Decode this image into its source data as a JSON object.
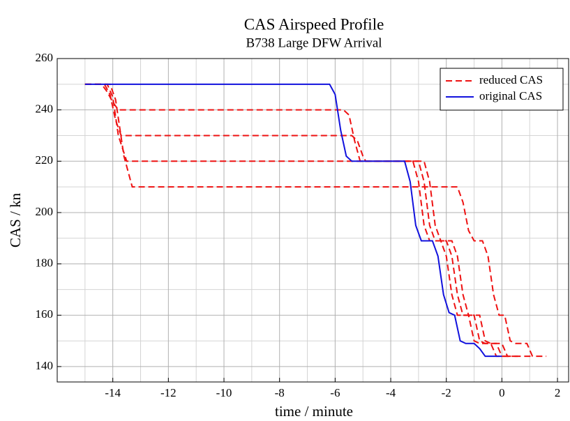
{
  "chart_data": {
    "type": "line",
    "title": "CAS Airspeed Profile",
    "subtitle": "B738 Large DFW Arrival",
    "x_label": "time / minute",
    "y_label": "CAS / kn",
    "xlim": [
      -16,
      2.4
    ],
    "ylim": [
      134,
      260
    ],
    "xticks": [
      -14,
      -12,
      -10,
      -8,
      -6,
      -4,
      -2,
      0,
      2
    ],
    "xminorticks": [
      -15,
      -13,
      -11,
      -9,
      -7,
      -5,
      -3,
      -1,
      1
    ],
    "yticks": [
      140,
      160,
      180,
      200,
      220,
      240,
      260
    ],
    "yminorticks": [
      150,
      170,
      190,
      210,
      230,
      250
    ],
    "grid": true,
    "legend": "upper right",
    "series": [
      {
        "name": "reduced CAS",
        "color": "#ee1111",
        "dash": true,
        "x": [
          -15,
          -14.4,
          -14.2,
          -14.0,
          -13.8,
          -5.7,
          -5.5,
          -5.3,
          -5.1,
          -3.2,
          -3.0,
          -2.8,
          -2.6,
          -2.2,
          -2.0,
          -1.8,
          -1.6,
          -1.2,
          -1.0,
          -0.8,
          -0.4,
          -0.2,
          0.3
        ],
        "values": [
          250,
          250,
          247,
          243,
          240,
          240,
          238,
          228,
          220,
          220,
          212,
          195,
          189,
          189,
          183,
          168,
          160,
          160,
          150,
          149,
          149,
          144,
          144
        ]
      },
      {
        "name": "reduced CAS",
        "color": "#ee1111",
        "dash": true,
        "x": [
          -15,
          -14.3,
          -14.1,
          -13.9,
          -13.7,
          -5.4,
          -5.2,
          -5.0,
          -4.9,
          -3.0,
          -2.8,
          -2.6,
          -2.4,
          -2.0,
          -1.8,
          -1.6,
          -1.4,
          -1.0,
          -0.8,
          -0.6,
          -0.2,
          0,
          0.7
        ],
        "values": [
          250,
          250,
          246,
          236,
          230,
          230,
          228,
          222,
          220,
          220,
          212,
          195,
          189,
          189,
          183,
          168,
          160,
          160,
          150,
          149,
          149,
          144,
          144
        ]
      },
      {
        "name": "reduced CAS",
        "color": "#ee1111",
        "dash": true,
        "x": [
          -15,
          -14.2,
          -14.0,
          -13.8,
          -13.5,
          -2.8,
          -2.6,
          -2.4,
          -2.2,
          -1.8,
          -1.6,
          -1.4,
          -1.2,
          -0.8,
          -0.6,
          -0.4,
          0,
          0.2,
          1.1
        ],
        "values": [
          250,
          250,
          245,
          230,
          220,
          220,
          212,
          195,
          189,
          189,
          183,
          168,
          160,
          160,
          150,
          149,
          149,
          144,
          144
        ]
      },
      {
        "name": "reduced CAS",
        "color": "#ee1111",
        "dash": true,
        "x": [
          -15,
          -14.1,
          -13.9,
          -13.6,
          -13.3,
          -1.6,
          -1.4,
          -1.2,
          -1.0,
          -0.7,
          -0.5,
          -0.3,
          -0.1,
          0.1,
          0.3,
          0.5,
          0.9,
          1.1,
          1.6
        ],
        "values": [
          250,
          250,
          244,
          222,
          210,
          210,
          204,
          193,
          189,
          189,
          183,
          168,
          160,
          160,
          150,
          149,
          149,
          144,
          144
        ]
      },
      {
        "name": "original CAS",
        "color": "#1111dd",
        "dash": false,
        "x": [
          -15,
          -6.2,
          -6.0,
          -5.8,
          -5.6,
          -5.4,
          -3.5,
          -3.3,
          -3.1,
          -2.9,
          -2.5,
          -2.3,
          -2.1,
          -1.9,
          -1.7,
          -1.5,
          -1.3,
          -1.0,
          -0.8,
          -0.6,
          0
        ],
        "values": [
          250,
          250,
          246,
          232,
          222,
          220,
          220,
          212,
          195,
          189,
          189,
          183,
          168,
          161,
          160,
          150,
          149,
          149,
          147,
          144,
          144
        ]
      }
    ]
  }
}
